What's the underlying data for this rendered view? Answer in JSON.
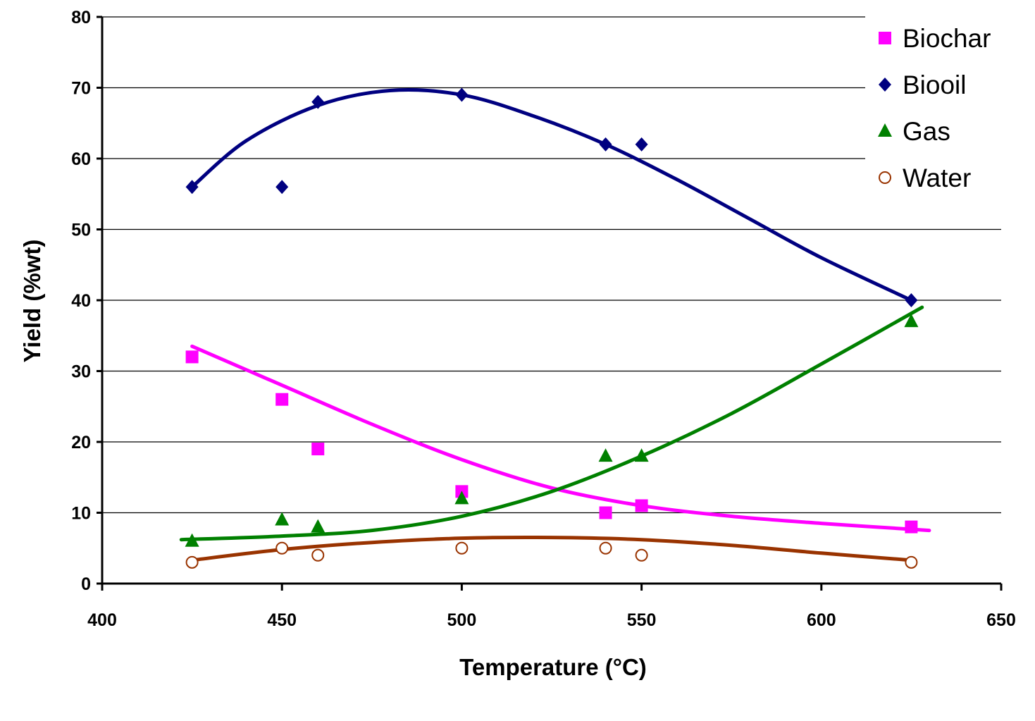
{
  "chart_data": {
    "type": "scatter",
    "title": "",
    "xlabel": "Temperature (°C)",
    "ylabel": "Yield (%wt)",
    "xlim": [
      400,
      650
    ],
    "ylim": [
      0,
      80
    ],
    "xticks": [
      400,
      450,
      500,
      550,
      600,
      650
    ],
    "yticks": [
      0,
      10,
      20,
      30,
      40,
      50,
      60,
      70,
      80
    ],
    "grid": "horizontal",
    "legend_position": "top-right",
    "series": [
      {
        "name": "Biochar",
        "marker": "square",
        "color": "#FF00FF",
        "x": [
          425,
          450,
          460,
          500,
          540,
          550,
          625
        ],
        "y": [
          32,
          26,
          19,
          13,
          10,
          11,
          8
        ],
        "trend": {
          "x": [
            425,
            450,
            475,
            500,
            525,
            550,
            575,
            600,
            630
          ],
          "y": [
            33.5,
            28,
            22.5,
            17.5,
            13.5,
            11,
            9.5,
            8.5,
            7.5
          ]
        }
      },
      {
        "name": "Biooil",
        "marker": "diamond",
        "color": "#000080",
        "x": [
          425,
          450,
          460,
          500,
          540,
          550,
          625
        ],
        "y": [
          56,
          56,
          68,
          69,
          62,
          62,
          40
        ],
        "trend": {
          "x": [
            425,
            440,
            460,
            480,
            500,
            520,
            540,
            560,
            580,
            600,
            625
          ],
          "y": [
            56,
            62.5,
            67.5,
            69.6,
            69,
            66,
            62,
            57,
            51.5,
            46,
            40
          ]
        }
      },
      {
        "name": "Gas",
        "marker": "triangle",
        "color": "#008000",
        "x": [
          425,
          450,
          460,
          500,
          540,
          550,
          625
        ],
        "y": [
          6,
          9,
          8,
          12,
          18,
          18,
          37
        ],
        "trend": {
          "x": [
            422,
            450,
            475,
            500,
            525,
            550,
            575,
            600,
            628
          ],
          "y": [
            6.2,
            6.7,
            7.5,
            9.5,
            13,
            18,
            24,
            31,
            39
          ]
        }
      },
      {
        "name": "Water",
        "marker": "circle-open",
        "color": "#993300",
        "x": [
          425,
          450,
          460,
          500,
          540,
          550,
          625
        ],
        "y": [
          3,
          5,
          4,
          5,
          5,
          4,
          3
        ],
        "trend": {
          "x": [
            425,
            450,
            475,
            500,
            525,
            550,
            575,
            600,
            625
          ],
          "y": [
            3.3,
            4.8,
            5.8,
            6.4,
            6.5,
            6.2,
            5.4,
            4.3,
            3.3
          ]
        }
      }
    ]
  }
}
